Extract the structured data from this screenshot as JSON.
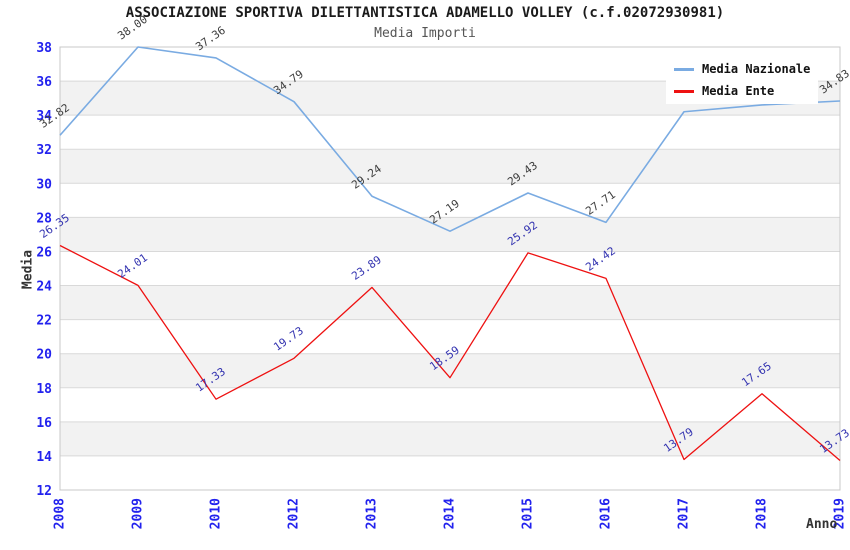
{
  "chart_data": {
    "type": "line",
    "title": "ASSOCIAZIONE SPORTIVA DILETTANTISTICA ADAMELLO VOLLEY (c.f.02072930981)",
    "subtitle": "Media Importi",
    "xlabel": "Anno",
    "ylabel": "Media",
    "categories": [
      "2008",
      "2009",
      "2010",
      "2012",
      "2013",
      "2014",
      "2015",
      "2016",
      "2017",
      "2018",
      "2019"
    ],
    "series": [
      {
        "name": "Media Nazionale",
        "color": "#7aabe2",
        "label_color": "#3d3d3d",
        "values": [
          32.82,
          38.0,
          37.36,
          34.79,
          29.24,
          27.19,
          29.43,
          27.71,
          34.2,
          34.6,
          34.83
        ],
        "point_labels": [
          "32.82",
          "38.00",
          "37.36",
          "34.79",
          "29.24",
          "27.19",
          "29.43",
          "27.71",
          null,
          null,
          "34.83"
        ]
      },
      {
        "name": "Media Ente",
        "color": "#ee1111",
        "label_color": "#3333b0",
        "values": [
          26.35,
          24.01,
          17.33,
          19.73,
          23.89,
          18.59,
          25.92,
          24.42,
          13.79,
          17.65,
          13.73
        ],
        "point_labels": [
          "26.35",
          "24.01",
          "17.33",
          "19.73",
          "23.89",
          "18.59",
          "25.92",
          "24.42",
          "13.79",
          "17.65",
          "13.73"
        ]
      }
    ],
    "ylim": [
      12,
      38
    ],
    "ytick_step": 2,
    "grid": "horizontal gridlines with alternating gray bands",
    "legend_position": "top-right",
    "colors": {
      "tick_labels": "#2222ee",
      "grid": "#d9d9d9",
      "band": "#f2f2f2",
      "border": "#c8c8c8"
    }
  }
}
